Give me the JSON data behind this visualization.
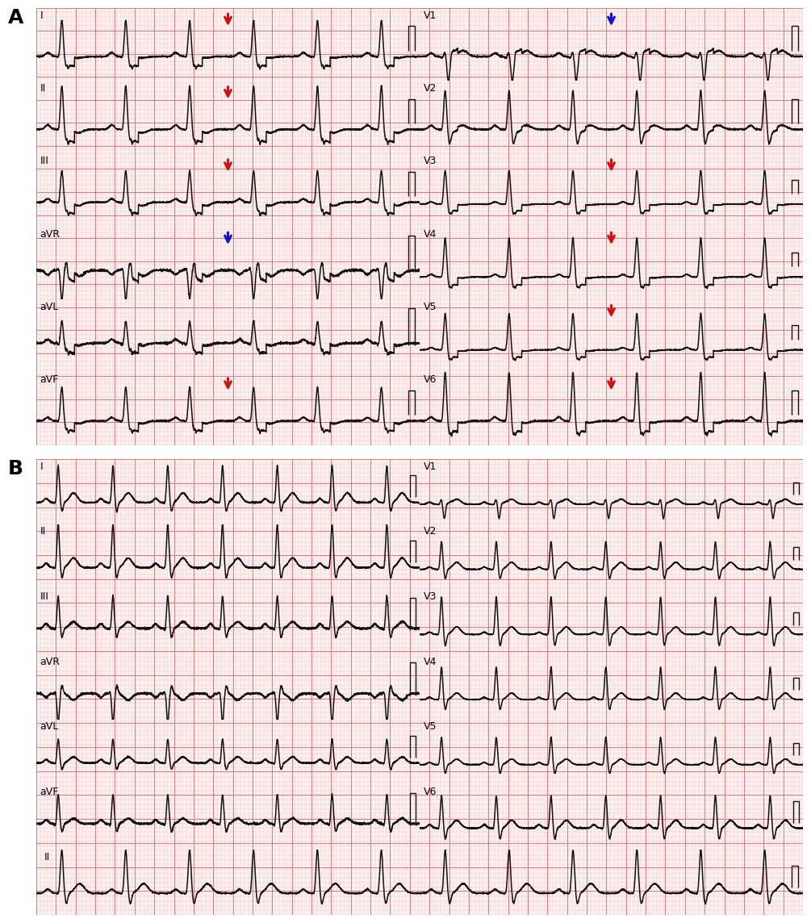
{
  "panel_A_label": "A",
  "panel_B_label": "B",
  "bg_color": "#fdf0f0",
  "grid_minor_color": "#e8b8b8",
  "grid_major_color": "#cc7777",
  "outer_bg": "#ffffff",
  "ecg_color": "#111111",
  "ecg_linewidth": 1.1,
  "red_arrow_color": "#cc1111",
  "blue_arrow_color": "#1111cc",
  "label_fontsize": 9,
  "panel_label_fontsize": 18,
  "arrow_lw": 2.2,
  "arrow_scale": 14
}
